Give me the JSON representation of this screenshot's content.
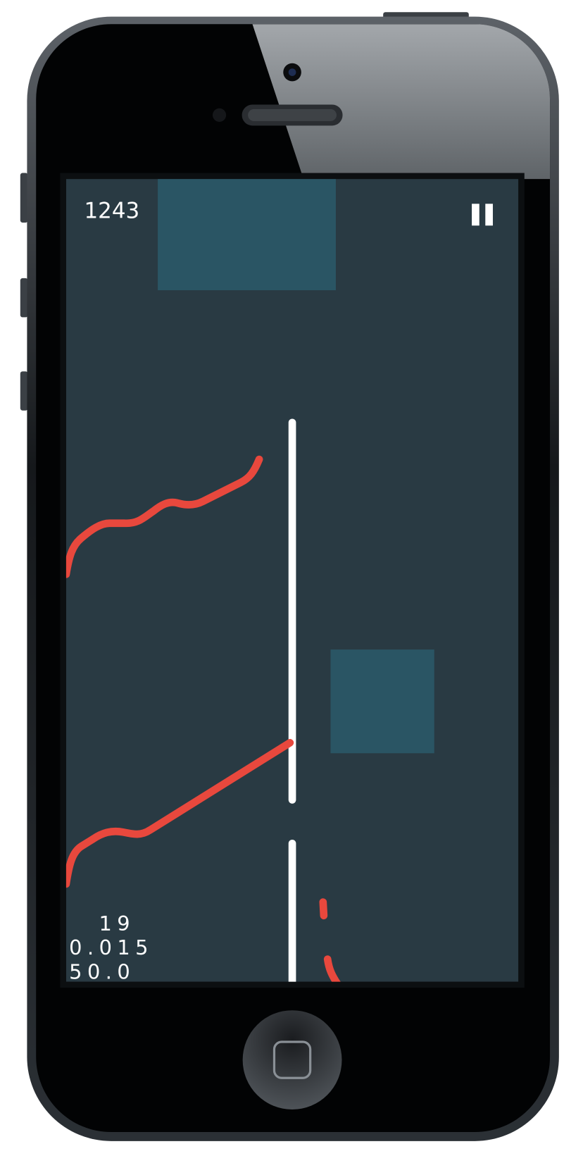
{
  "hud": {
    "score": "1243"
  },
  "debug": {
    "lines": [
      "19",
      "0.015",
      "50.0"
    ]
  }
}
